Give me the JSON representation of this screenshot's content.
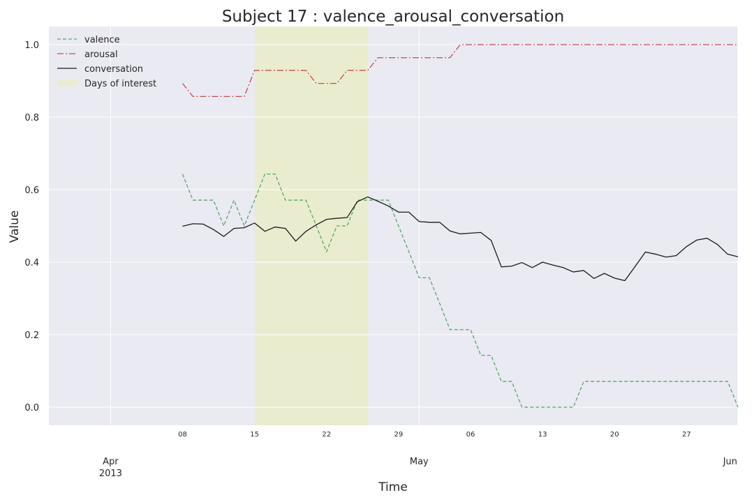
{
  "chart_data": {
    "type": "line",
    "title": "Subject 17 : valence_arousal_conversation",
    "xlabel": "Time",
    "ylabel": "Value",
    "x_range": [
      "2013-03-26",
      "2013-06-01"
    ],
    "ylim": [
      -0.05,
      1.05
    ],
    "grid": true,
    "legend_position": "top-left",
    "yticks": [
      "0.0",
      "0.2",
      "0.4",
      "0.6",
      "0.8",
      "1.0"
    ],
    "minor_ticks": [
      {
        "date": "2013-04-08",
        "label": "08"
      },
      {
        "date": "2013-04-15",
        "label": "15"
      },
      {
        "date": "2013-04-22",
        "label": "22"
      },
      {
        "date": "2013-04-29",
        "label": "29"
      },
      {
        "date": "2013-05-06",
        "label": "06"
      },
      {
        "date": "2013-05-13",
        "label": "13"
      },
      {
        "date": "2013-05-20",
        "label": "20"
      },
      {
        "date": "2013-05-27",
        "label": "27"
      }
    ],
    "major_ticks": [
      {
        "date": "2013-04-01",
        "label": "Apr",
        "sublabel": "2013"
      },
      {
        "date": "2013-05-01",
        "label": "May",
        "sublabel": ""
      },
      {
        "date": "2013-06-01",
        "label": "Jun",
        "sublabel": ""
      }
    ],
    "highlight": {
      "name": "Days of interest",
      "start": "2013-04-15",
      "end": "2013-04-26",
      "color": "#eaeccf"
    },
    "x": [
      "2013-04-08",
      "2013-04-09",
      "2013-04-10",
      "2013-04-11",
      "2013-04-12",
      "2013-04-13",
      "2013-04-14",
      "2013-04-15",
      "2013-04-16",
      "2013-04-17",
      "2013-04-18",
      "2013-04-19",
      "2013-04-20",
      "2013-04-21",
      "2013-04-22",
      "2013-04-23",
      "2013-04-24",
      "2013-04-25",
      "2013-04-26",
      "2013-04-27",
      "2013-04-28",
      "2013-04-29",
      "2013-04-30",
      "2013-05-01",
      "2013-05-02",
      "2013-05-03",
      "2013-05-04",
      "2013-05-05",
      "2013-05-06",
      "2013-05-07",
      "2013-05-08",
      "2013-05-09",
      "2013-05-10",
      "2013-05-11",
      "2013-05-12",
      "2013-05-13",
      "2013-05-14",
      "2013-05-15",
      "2013-05-16",
      "2013-05-17",
      "2013-05-18",
      "2013-05-19",
      "2013-05-20",
      "2013-05-21",
      "2013-05-22",
      "2013-05-23",
      "2013-05-24",
      "2013-05-25",
      "2013-05-26",
      "2013-05-27",
      "2013-05-28",
      "2013-05-29",
      "2013-05-30",
      "2013-05-31",
      "2013-06-01"
    ],
    "series": [
      {
        "name": "valence",
        "color": "#55a868",
        "dash": "dashed",
        "values": [
          0.643,
          0.571,
          0.571,
          0.571,
          0.5,
          0.571,
          0.5,
          0.571,
          0.643,
          0.643,
          0.571,
          0.571,
          0.571,
          0.5,
          0.429,
          0.5,
          0.5,
          0.571,
          0.571,
          0.571,
          0.571,
          0.5,
          0.429,
          0.357,
          0.357,
          0.286,
          0.214,
          0.214,
          0.214,
          0.143,
          0.143,
          0.071,
          0.071,
          0.0,
          0.0,
          0.0,
          0.0,
          0.0,
          0.0,
          0.071,
          0.071,
          0.071,
          0.071,
          0.071,
          0.071,
          0.071,
          0.071,
          0.071,
          0.071,
          0.071,
          0.071,
          0.071,
          0.071,
          0.071,
          0.0
        ]
      },
      {
        "name": "arousal",
        "color": "#c44e52",
        "dash": "dashdot",
        "values": [
          0.893,
          0.857,
          0.857,
          0.857,
          0.857,
          0.857,
          0.857,
          0.929,
          0.929,
          0.929,
          0.929,
          0.929,
          0.929,
          0.893,
          0.893,
          0.893,
          0.929,
          0.929,
          0.929,
          0.964,
          0.964,
          0.964,
          0.964,
          0.964,
          0.964,
          0.964,
          0.964,
          1.0,
          1.0,
          1.0,
          1.0,
          1.0,
          1.0,
          1.0,
          1.0,
          1.0,
          1.0,
          1.0,
          1.0,
          1.0,
          1.0,
          1.0,
          1.0,
          1.0,
          1.0,
          1.0,
          1.0,
          1.0,
          1.0,
          1.0,
          1.0,
          1.0,
          1.0,
          1.0,
          1.0
        ]
      },
      {
        "name": "conversation",
        "color": "#1a1a1a",
        "dash": "solid",
        "values": [
          0.499,
          0.506,
          0.505,
          0.49,
          0.471,
          0.493,
          0.495,
          0.508,
          0.485,
          0.497,
          0.493,
          0.458,
          0.485,
          0.503,
          0.518,
          0.521,
          0.523,
          0.567,
          0.58,
          0.568,
          0.555,
          0.538,
          0.538,
          0.512,
          0.51,
          0.51,
          0.486,
          0.478,
          0.48,
          0.482,
          0.46,
          0.387,
          0.389,
          0.399,
          0.385,
          0.4,
          0.392,
          0.385,
          0.373,
          0.377,
          0.355,
          0.369,
          0.356,
          0.349,
          0.388,
          0.428,
          0.422,
          0.414,
          0.418,
          0.443,
          0.461,
          0.466,
          0.449,
          0.422,
          0.415
        ]
      }
    ]
  }
}
